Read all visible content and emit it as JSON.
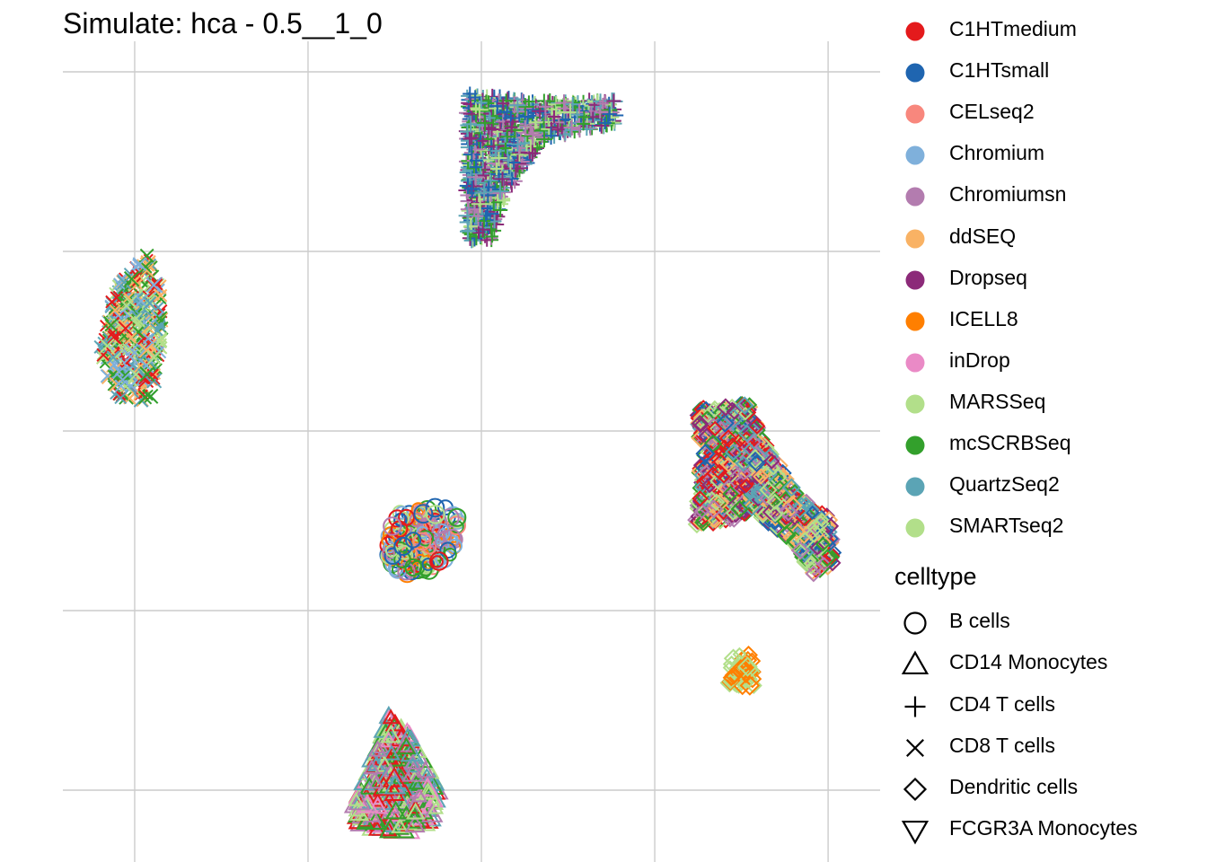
{
  "chart_data": {
    "type": "scatter",
    "title": "Simulate: hca - 0.5__1_0",
    "xlabel": "",
    "ylabel": "",
    "grid": true,
    "legend_position": "right",
    "legends": [
      {
        "title": "",
        "aesthetic": "color",
        "entries": [
          {
            "label": "C1HTmedium",
            "color": "#E41A1C"
          },
          {
            "label": "C1HTsmall",
            "color": "#1F65B0"
          },
          {
            "label": "CELseq2",
            "color": "#F8877D"
          },
          {
            "label": "Chromium",
            "color": "#7FB0DB"
          },
          {
            "label": "Chromiumsn",
            "color": "#B37CAF"
          },
          {
            "label": "ddSEQ",
            "color": "#F9B264"
          },
          {
            "label": "Dropseq",
            "color": "#8C2A79"
          },
          {
            "label": "ICELL8",
            "color": "#FF7F00"
          },
          {
            "label": "inDrop",
            "color": "#EA8AC6"
          },
          {
            "label": "MARSSeq",
            "color": "#B2DF8A"
          },
          {
            "label": "mcSCRBSeq",
            "color": "#33A02C"
          },
          {
            "label": "QuartzSeq2",
            "color": "#5BA4B5"
          },
          {
            "label": "SMARTseq2",
            "color": "#B2DF8A"
          }
        ]
      },
      {
        "title": "celltype",
        "aesthetic": "shape",
        "entries": [
          {
            "label": "B cells",
            "shape": "circle"
          },
          {
            "label": "CD14 Monocytes",
            "shape": "triangle"
          },
          {
            "label": "CD4 T cells",
            "shape": "plus"
          },
          {
            "label": "CD8 T cells",
            "shape": "cross"
          },
          {
            "label": "Dendritic cells",
            "shape": "diamond"
          },
          {
            "label": "FCGR3A Monocytes",
            "shape": "triangle-down"
          }
        ]
      }
    ],
    "xlim": [
      -16.4,
      16.6
    ],
    "ylim": [
      -12.0,
      11.0
    ],
    "x_gridlines": [
      -13.5,
      -6.5,
      0.5,
      7.5,
      14.5
    ],
    "y_gridlines": [
      10,
      5,
      0,
      -5,
      -10
    ],
    "clusters": [
      {
        "celltype": "CD4 T cells",
        "shape": "plus",
        "center": [
          1.5,
          7.5
        ],
        "outline": [
          [
            -0.1,
            9.4
          ],
          [
            2.5,
            9.2
          ],
          [
            5.9,
            9.2
          ],
          [
            5.9,
            8.5
          ],
          [
            3.0,
            8.1
          ],
          [
            1.5,
            6.6
          ],
          [
            0.9,
            5.3
          ],
          [
            -0.1,
            5.3
          ]
        ],
        "groups": [
          "Dropseq",
          "QuartzSeq2",
          "Chromiumsn",
          "mcSCRBSeq",
          "SMARTseq2",
          "C1HTsmall"
        ]
      },
      {
        "celltype": "CD8 T cells",
        "shape": "cross",
        "center": [
          -13.5,
          2.5
        ],
        "outline": [
          [
            -12.4,
            4.1
          ],
          [
            -13.0,
            4.9
          ],
          [
            -14.3,
            4.1
          ],
          [
            -14.9,
            2.3
          ],
          [
            -14.5,
            1.1
          ],
          [
            -13.8,
            0.8
          ],
          [
            -12.9,
            0.8
          ],
          [
            -12.4,
            2.3
          ]
        ],
        "groups": [
          "SMARTseq2",
          "mcSCRBSeq",
          "QuartzSeq2",
          "Chromium",
          "ddSEQ",
          "C1HTmedium"
        ]
      },
      {
        "celltype": "B cells",
        "shape": "circle",
        "center": [
          -2.2,
          -2.9
        ],
        "outline": [
          [
            -2.8,
            -2.2
          ],
          [
            -1.0,
            -2.1
          ],
          [
            -0.4,
            -2.4
          ],
          [
            -0.6,
            -3.4
          ],
          [
            -1.6,
            -3.9
          ],
          [
            -2.9,
            -4.0
          ],
          [
            -3.3,
            -3.5
          ],
          [
            -3.3,
            -2.8
          ]
        ],
        "groups": [
          "ICELL8",
          "Chromium",
          "mcSCRBSeq",
          "SMARTseq2",
          "C1HTmedium",
          "CELseq2",
          "C1HTsmall",
          "Chromiumsn"
        ]
      },
      {
        "celltype": "CD14 Monocytes",
        "shape": "triangle",
        "center": [
          -3.2,
          -10.3
        ],
        "outline": [
          [
            -3.3,
            -7.8
          ],
          [
            -2.4,
            -8.4
          ],
          [
            -2.0,
            -9.0
          ],
          [
            -1.2,
            -10.0
          ],
          [
            -1.4,
            -10.8
          ],
          [
            -2.6,
            -11.2
          ],
          [
            -3.7,
            -11.1
          ],
          [
            -4.6,
            -10.9
          ],
          [
            -4.6,
            -10.3
          ],
          [
            -4.0,
            -9.3
          ]
        ],
        "groups": [
          "SMARTseq2",
          "mcSCRBSeq",
          "QuartzSeq2",
          "Chromiumsn",
          "inDrop",
          "C1HTmedium"
        ]
      },
      {
        "celltype": "Dendritic cells",
        "shape": "diamond",
        "center": [
          10.3,
          -1.5
        ],
        "outline": [
          [
            9.2,
            0.6
          ],
          [
            11.3,
            0.8
          ],
          [
            11.8,
            -0.2
          ],
          [
            13.4,
            -1.9
          ],
          [
            14.6,
            -2.4
          ],
          [
            14.7,
            -3.7
          ],
          [
            13.9,
            -4.0
          ],
          [
            13.2,
            -3.2
          ],
          [
            11.5,
            -2.2
          ],
          [
            10.5,
            -2.5
          ],
          [
            9.2,
            -2.6
          ],
          [
            9.4,
            -0.6
          ]
        ],
        "groups": [
          "mcSCRBSeq",
          "SMARTseq2",
          "ddSEQ",
          "Chromiumsn",
          "C1HTmedium",
          "C1HTsmall",
          "QuartzSeq2",
          "Dropseq"
        ]
      },
      {
        "celltype": "Dendritic cells",
        "shape": "diamond",
        "center": [
          11.0,
          -6.6
        ],
        "outline": [
          [
            10.5,
            -6.2
          ],
          [
            11.5,
            -6.2
          ],
          [
            11.5,
            -7.1
          ],
          [
            10.5,
            -7.1
          ]
        ],
        "groups": [
          "ICELL8",
          "SMARTseq2"
        ]
      }
    ]
  }
}
